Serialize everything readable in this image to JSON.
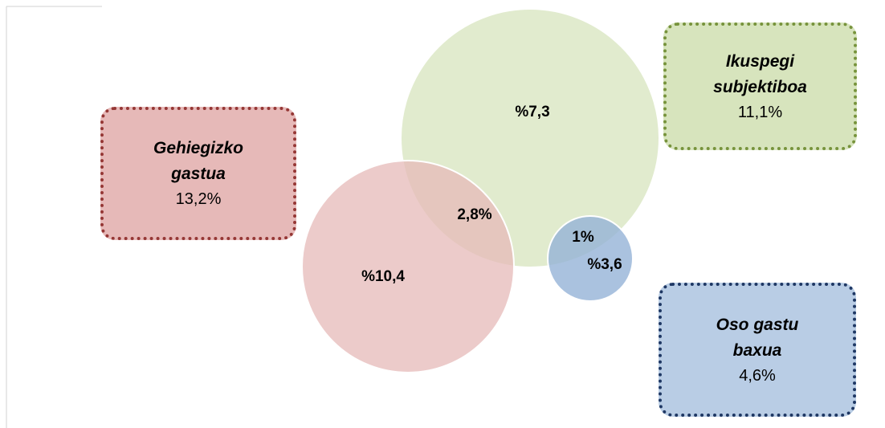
{
  "boxes": [
    {
      "title": "Gehiegizko gastua",
      "value": "13,2%"
    },
    {
      "title": "Ikuspegi subjektiboa",
      "value": "11,1%"
    },
    {
      "title": "Oso gastu baxua",
      "value": "4,6%"
    }
  ],
  "circles": [
    {
      "label": "%10,4"
    },
    {
      "label": "%7,3"
    },
    {
      "label": "%3,6"
    }
  ],
  "overlaps": [
    {
      "label": "2,8%"
    },
    {
      "label": "1%"
    }
  ]
}
